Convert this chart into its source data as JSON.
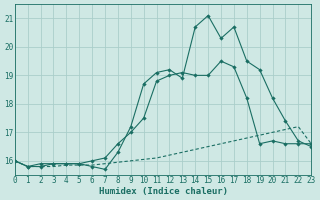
{
  "xlabel": "Humidex (Indice chaleur)",
  "background_color": "#cfe8e4",
  "grid_color": "#aaceca",
  "line_color": "#1a6e63",
  "xlim": [
    0,
    23
  ],
  "ylim": [
    15.5,
    21.5
  ],
  "yticks": [
    16,
    17,
    18,
    19,
    20,
    21
  ],
  "xticks": [
    0,
    1,
    2,
    3,
    4,
    5,
    6,
    7,
    8,
    9,
    10,
    11,
    12,
    13,
    14,
    15,
    16,
    17,
    18,
    19,
    20,
    21,
    22,
    23
  ],
  "series1_x": [
    0,
    1,
    2,
    3,
    4,
    5,
    6,
    7,
    8,
    9,
    10,
    11,
    12,
    13,
    14,
    15,
    16,
    17,
    18,
    19,
    20,
    21,
    22,
    23
  ],
  "series1_y": [
    16.0,
    15.8,
    15.8,
    15.8,
    15.85,
    15.85,
    15.85,
    15.9,
    15.95,
    16.0,
    16.05,
    16.1,
    16.2,
    16.3,
    16.4,
    16.5,
    16.6,
    16.7,
    16.8,
    16.9,
    17.0,
    17.1,
    17.2,
    16.6
  ],
  "series2_x": [
    0,
    1,
    2,
    3,
    4,
    5,
    6,
    7,
    8,
    9,
    10,
    11,
    12,
    13,
    14,
    15,
    16,
    17,
    18,
    19,
    20,
    21,
    22,
    23
  ],
  "series2_y": [
    16.0,
    15.8,
    15.9,
    15.9,
    15.9,
    15.9,
    16.0,
    16.1,
    16.6,
    17.0,
    17.5,
    18.8,
    19.0,
    19.1,
    19.0,
    19.0,
    19.5,
    19.3,
    18.2,
    16.6,
    16.7,
    16.6,
    16.6,
    16.6
  ],
  "series3_x": [
    0,
    1,
    2,
    3,
    4,
    5,
    6,
    7,
    8,
    9,
    10,
    11,
    12,
    13,
    14,
    15,
    16,
    17,
    18,
    19,
    20,
    21,
    22,
    23
  ],
  "series3_y": [
    16.0,
    15.8,
    15.8,
    15.9,
    15.9,
    15.9,
    15.8,
    15.7,
    16.3,
    17.2,
    18.7,
    19.1,
    19.2,
    18.9,
    20.7,
    21.1,
    20.3,
    20.7,
    19.5,
    19.2,
    18.2,
    17.4,
    16.7,
    16.5
  ]
}
